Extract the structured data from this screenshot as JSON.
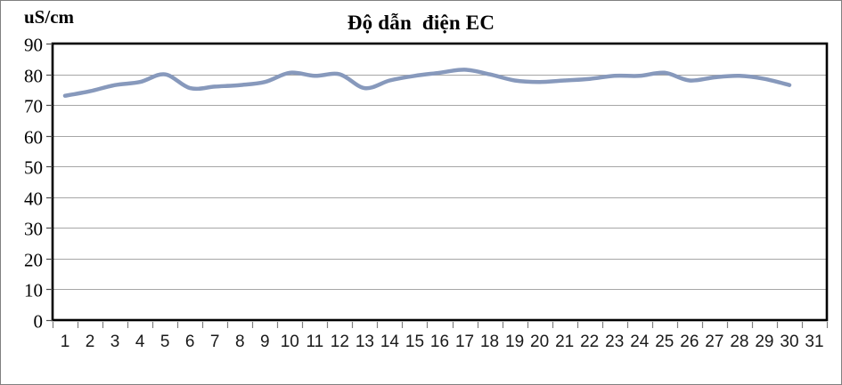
{
  "window": {
    "background_color": "#ffffff",
    "border_color": "#808080"
  },
  "chart_data": {
    "type": "line",
    "title": "Độ dẫn  điện EC",
    "y_axis_unit_label": "uS/cm",
    "xlabel": "",
    "ylabel": "uS/cm",
    "x_tick_labels": [
      "1",
      "2",
      "3",
      "4",
      "5",
      "6",
      "7",
      "8",
      "9",
      "10",
      "11",
      "12",
      "13",
      "14",
      "15",
      "16",
      "17",
      "18",
      "19",
      "20",
      "21",
      "22",
      "23",
      "24",
      "25",
      "26",
      "27",
      "28",
      "29",
      "30",
      "31"
    ],
    "y_ticks": [
      0,
      10,
      20,
      30,
      40,
      50,
      60,
      70,
      80,
      90
    ],
    "ylim": [
      0,
      90
    ],
    "grid": true,
    "legend": "none",
    "smooth": true,
    "series": [
      {
        "name": "EC",
        "x": [
          1,
          2,
          3,
          4,
          5,
          6,
          7,
          8,
          9,
          10,
          11,
          12,
          13,
          14,
          15,
          16,
          17,
          18,
          19,
          20,
          21,
          22,
          23,
          24,
          25,
          26,
          27,
          28,
          29,
          30
        ],
        "values": [
          73,
          74.5,
          76.5,
          77.5,
          80,
          75.5,
          76,
          76.5,
          77.5,
          80.5,
          79.5,
          80,
          75.5,
          78,
          79.5,
          80.5,
          81.5,
          80,
          78,
          77.5,
          78,
          78.5,
          79.5,
          79.5,
          80.5,
          78,
          79,
          79.5,
          78.5,
          76.5
        ]
      }
    ],
    "colors": {
      "series_line": "#8799BC",
      "gridline": "#A6A6A6",
      "plot_border": "#000000",
      "y_tick": "#4d4d4d",
      "x_tick": "#808080"
    }
  }
}
